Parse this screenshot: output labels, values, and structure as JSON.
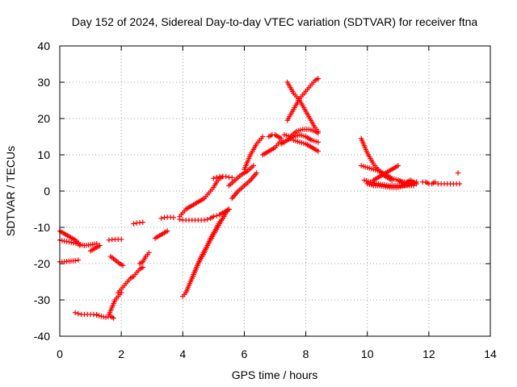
{
  "chart_data": {
    "type": "scatter",
    "title": "Day 152 of 2024, Sidereal Day-to-day VTEC variation (SDTVAR) for receiver ftna",
    "xlabel": "GPS time / hours",
    "ylabel": "SDTVAR / TECUs",
    "xlim": [
      0,
      14
    ],
    "ylim": [
      -40,
      40
    ],
    "xticks": [
      "0",
      "2",
      "4",
      "6",
      "8",
      "10",
      "12",
      "14"
    ],
    "yticks": [
      "-40",
      "-30",
      "-20",
      "-10",
      "0",
      "10",
      "20",
      "30",
      "40"
    ],
    "grid": true,
    "legend": "none",
    "marker": "+",
    "color": "#ff0000",
    "series": [
      {
        "x": [
          0.0,
          0.1,
          0.2,
          0.3,
          0.4,
          0.5,
          0.6,
          0.65
        ],
        "y": [
          -11,
          -11.5,
          -12,
          -12.5,
          -13,
          -13.5,
          -14.2,
          -15
        ]
      },
      {
        "x": [
          0.0,
          0.15,
          0.3,
          0.45,
          0.6,
          0.8,
          1.0,
          1.2
        ],
        "y": [
          -13.5,
          -13.8,
          -14,
          -14.3,
          -14.6,
          -15,
          -14.8,
          -14.5
        ]
      },
      {
        "x": [
          0.0,
          0.15,
          0.3,
          0.5,
          0.6
        ],
        "y": [
          -19.5,
          -19.5,
          -19.3,
          -19.2,
          -19.0
        ]
      },
      {
        "x": [
          0.5,
          0.6,
          0.7,
          0.8,
          0.9,
          1.0,
          1.1,
          1.2
        ],
        "y": [
          -33.5,
          -33.8,
          -34.0,
          -34.0,
          -34.0,
          -34.0,
          -34.0,
          -34.0
        ]
      },
      {
        "x": [
          1.2,
          1.35,
          1.5,
          1.65,
          1.75
        ],
        "y": [
          -34.2,
          -34.5,
          -34.8,
          -34.5,
          -35.0
        ]
      },
      {
        "x": [
          1.6,
          1.65,
          1.7,
          1.75,
          1.8,
          1.85,
          1.9,
          1.95,
          2.0
        ],
        "y": [
          -34.0,
          -33.0,
          -32.0,
          -31.0,
          -30.0,
          -29.5,
          -29.0,
          -28.5,
          -28.0
        ]
      },
      {
        "x": [
          1.6,
          1.7,
          1.8,
          1.9,
          2.0
        ],
        "y": [
          -13.5,
          -13.4,
          -13.3,
          -13.3,
          -13.3
        ]
      },
      {
        "x": [
          1.65,
          1.8,
          1.95,
          2.05
        ],
        "y": [
          -18.0,
          -19.0,
          -20.0,
          -20.5
        ]
      },
      {
        "x": [
          1.0,
          1.1,
          1.2,
          1.3
        ],
        "y": [
          -16.5,
          -16.0,
          -15.5,
          -15.0
        ]
      },
      {
        "x": [
          1.9,
          2.0,
          2.1,
          2.2,
          2.3,
          2.4,
          2.5,
          2.6,
          2.7
        ],
        "y": [
          -28.0,
          -27.0,
          -26.0,
          -25.0,
          -24.0,
          -23.5,
          -22.5,
          -21.5,
          -21.0
        ]
      },
      {
        "x": [
          2.4,
          2.5,
          2.6,
          2.7
        ],
        "y": [
          -9.0,
          -8.8,
          -8.7,
          -8.6
        ]
      },
      {
        "x": [
          2.6,
          2.7,
          2.8,
          2.9
        ],
        "y": [
          -20.0,
          -19.5,
          -18.0,
          -17.0
        ]
      },
      {
        "x": [
          3.1,
          3.2,
          3.3,
          3.4,
          3.5
        ],
        "y": [
          -13.0,
          -12.5,
          -12.0,
          -11.5,
          -11.0
        ]
      },
      {
        "x": [
          3.3,
          3.4,
          3.5,
          3.6,
          3.7
        ],
        "y": [
          -7.5,
          -7.3,
          -7.2,
          -7.2,
          -7.3
        ]
      },
      {
        "x": [
          3.9,
          4.0,
          4.1,
          4.2,
          4.3,
          4.4,
          4.5,
          4.6,
          4.7,
          4.8,
          4.9,
          5.0,
          5.1,
          5.2,
          5.3,
          5.4,
          5.5
        ],
        "y": [
          -7.8,
          -8.0,
          -8.0,
          -8.0,
          -8.0,
          -8.0,
          -8.0,
          -8.0,
          -8.0,
          -7.8,
          -7.5,
          -7.0,
          -6.8,
          -6.5,
          -6.0,
          -5.5,
          -5.0
        ]
      },
      {
        "x": [
          3.9,
          4.0,
          4.1,
          4.2,
          4.3,
          4.4,
          4.5,
          4.6,
          4.7,
          4.8,
          4.9,
          5.0,
          5.1,
          5.2,
          5.3
        ],
        "y": [
          -7.0,
          -6.0,
          -5.0,
          -4.5,
          -4.0,
          -3.5,
          -3.0,
          -2.5,
          -2.0,
          -1.0,
          0.0,
          1.0,
          2.5,
          3.5,
          4.0
        ]
      },
      {
        "x": [
          4.0,
          4.1,
          4.2,
          4.3,
          4.4,
          4.5,
          4.6,
          4.7,
          4.8,
          4.9,
          5.0,
          5.1,
          5.2,
          5.3,
          5.4,
          5.5
        ],
        "y": [
          -29.0,
          -28.0,
          -26.0,
          -24.0,
          -22.0,
          -20.0,
          -18.0,
          -16.5,
          -15.0,
          -13.0,
          -11.5,
          -10.0,
          -8.5,
          -7.5,
          -6.0,
          -5.0
        ]
      },
      {
        "x": [
          4.3,
          4.4,
          4.5,
          4.6,
          4.7,
          4.8,
          4.9,
          5.0,
          5.1,
          5.2,
          5.3,
          5.4,
          5.5
        ],
        "y": [
          -24.0,
          -22.0,
          -20.0,
          -18.5,
          -17.0,
          -15.0,
          -13.5,
          -12.0,
          -10.5,
          -9.0,
          -7.5,
          -6.0,
          -5.0
        ]
      },
      {
        "x": [
          5.0,
          5.1,
          5.2,
          5.3,
          5.4,
          5.5,
          5.6
        ],
        "y": [
          3.5,
          3.8,
          4.0,
          4.0,
          4.0,
          3.8,
          3.7
        ]
      },
      {
        "x": [
          5.5,
          5.7,
          5.9,
          6.1,
          6.3
        ],
        "y": [
          1.5,
          3.0,
          4.5,
          5.5,
          7.0
        ]
      },
      {
        "x": [
          5.6,
          5.8,
          6.0,
          6.2,
          6.4
        ],
        "y": [
          -2.0,
          0.0,
          1.5,
          3.0,
          5.0
        ]
      },
      {
        "x": [
          6.0,
          6.1,
          6.2,
          6.3,
          6.4,
          6.5,
          6.6
        ],
        "y": [
          6.0,
          8.0,
          10.0,
          11.5,
          13.0,
          14.0,
          15.0
        ]
      },
      {
        "x": [
          6.6,
          6.7,
          6.8,
          6.9,
          7.0,
          7.1,
          7.2
        ],
        "y": [
          10.0,
          10.5,
          11.0,
          11.5,
          12.0,
          13.0,
          14.0
        ]
      },
      {
        "x": [
          6.8,
          6.9,
          7.0,
          7.1,
          7.2
        ],
        "y": [
          15.0,
          15.5,
          15.5,
          15.0,
          14.5
        ]
      },
      {
        "x": [
          7.2,
          7.4,
          7.6,
          7.8,
          8.0,
          8.2,
          8.4
        ],
        "y": [
          13.0,
          14.0,
          15.0,
          15.5,
          15.0,
          14.0,
          13.5
        ]
      },
      {
        "x": [
          7.3,
          7.5,
          7.7,
          7.9,
          8.1,
          8.3,
          8.4
        ],
        "y": [
          15.5,
          15.0,
          16.5,
          17.0,
          17.0,
          16.5,
          16.0
        ]
      },
      {
        "x": [
          7.4,
          7.5,
          7.6,
          7.7,
          7.8,
          7.9,
          8.0,
          8.1,
          8.2,
          8.3,
          8.4
        ],
        "y": [
          30.0,
          28.5,
          27.0,
          26.0,
          25.0,
          23.5,
          22.0,
          20.5,
          19.0,
          17.5,
          16.5
        ]
      },
      {
        "x": [
          7.4,
          7.5,
          7.6,
          7.7,
          7.8,
          7.9,
          8.0,
          8.1,
          8.2,
          8.3,
          8.4
        ],
        "y": [
          19.5,
          21.0,
          22.5,
          24.0,
          25.5,
          26.5,
          27.5,
          28.5,
          29.5,
          30.5,
          31.0
        ]
      },
      {
        "x": [
          7.6,
          7.8,
          8.0,
          8.2,
          8.4
        ],
        "y": [
          14.0,
          13.5,
          13.0,
          12.0,
          11.0
        ]
      },
      {
        "x": [
          9.8,
          9.9,
          10.0,
          10.1,
          10.2,
          10.3,
          10.4,
          10.5,
          10.6,
          10.7,
          10.8
        ],
        "y": [
          14.5,
          12.5,
          10.5,
          9.0,
          7.5,
          6.5,
          5.5,
          4.5,
          4.0,
          3.5,
          3.0
        ]
      },
      {
        "x": [
          9.8,
          10.0,
          10.2,
          10.4,
          10.6,
          10.8,
          11.0,
          11.2,
          11.4
        ],
        "y": [
          7.0,
          6.5,
          6.0,
          5.5,
          4.5,
          3.5,
          3.0,
          2.5,
          2.0
        ]
      },
      {
        "x": [
          10.2,
          10.4,
          10.6,
          10.8,
          11.0
        ],
        "y": [
          3.0,
          4.0,
          5.0,
          6.0,
          7.0
        ]
      },
      {
        "x": [
          9.9,
          10.1,
          10.3,
          10.5,
          10.7,
          10.9,
          11.1,
          11.3,
          11.5
        ],
        "y": [
          3.0,
          2.5,
          2.0,
          1.8,
          1.5,
          1.5,
          1.5,
          1.5,
          1.5
        ]
      },
      {
        "x": [
          10.0,
          10.2,
          10.4,
          10.6,
          10.8,
          11.0,
          11.2,
          11.4,
          11.6
        ],
        "y": [
          2.0,
          1.5,
          1.5,
          1.2,
          1.0,
          1.0,
          1.5,
          2.0,
          2.5
        ]
      },
      {
        "x": [
          11.0,
          11.1,
          11.2,
          11.3,
          11.4,
          11.5,
          11.6
        ],
        "y": [
          3.0,
          2.5,
          2.0,
          2.5,
          3.0,
          2.5,
          2.0
        ]
      },
      {
        "x": [
          11.8,
          11.9,
          12.0,
          12.1,
          12.2
        ],
        "y": [
          2.5,
          2.5,
          2.0,
          2.0,
          2.5
        ]
      },
      {
        "x": [
          12.3,
          12.4,
          12.5
        ],
        "y": [
          2.0,
          2.0,
          2.0
        ]
      },
      {
        "x": [
          12.6,
          12.7,
          12.8,
          12.9,
          13.0
        ],
        "y": [
          2.0,
          2.0,
          2.0,
          2.0,
          2.0
        ]
      },
      {
        "x": [
          12.95
        ],
        "y": [
          5.0
        ]
      }
    ]
  }
}
